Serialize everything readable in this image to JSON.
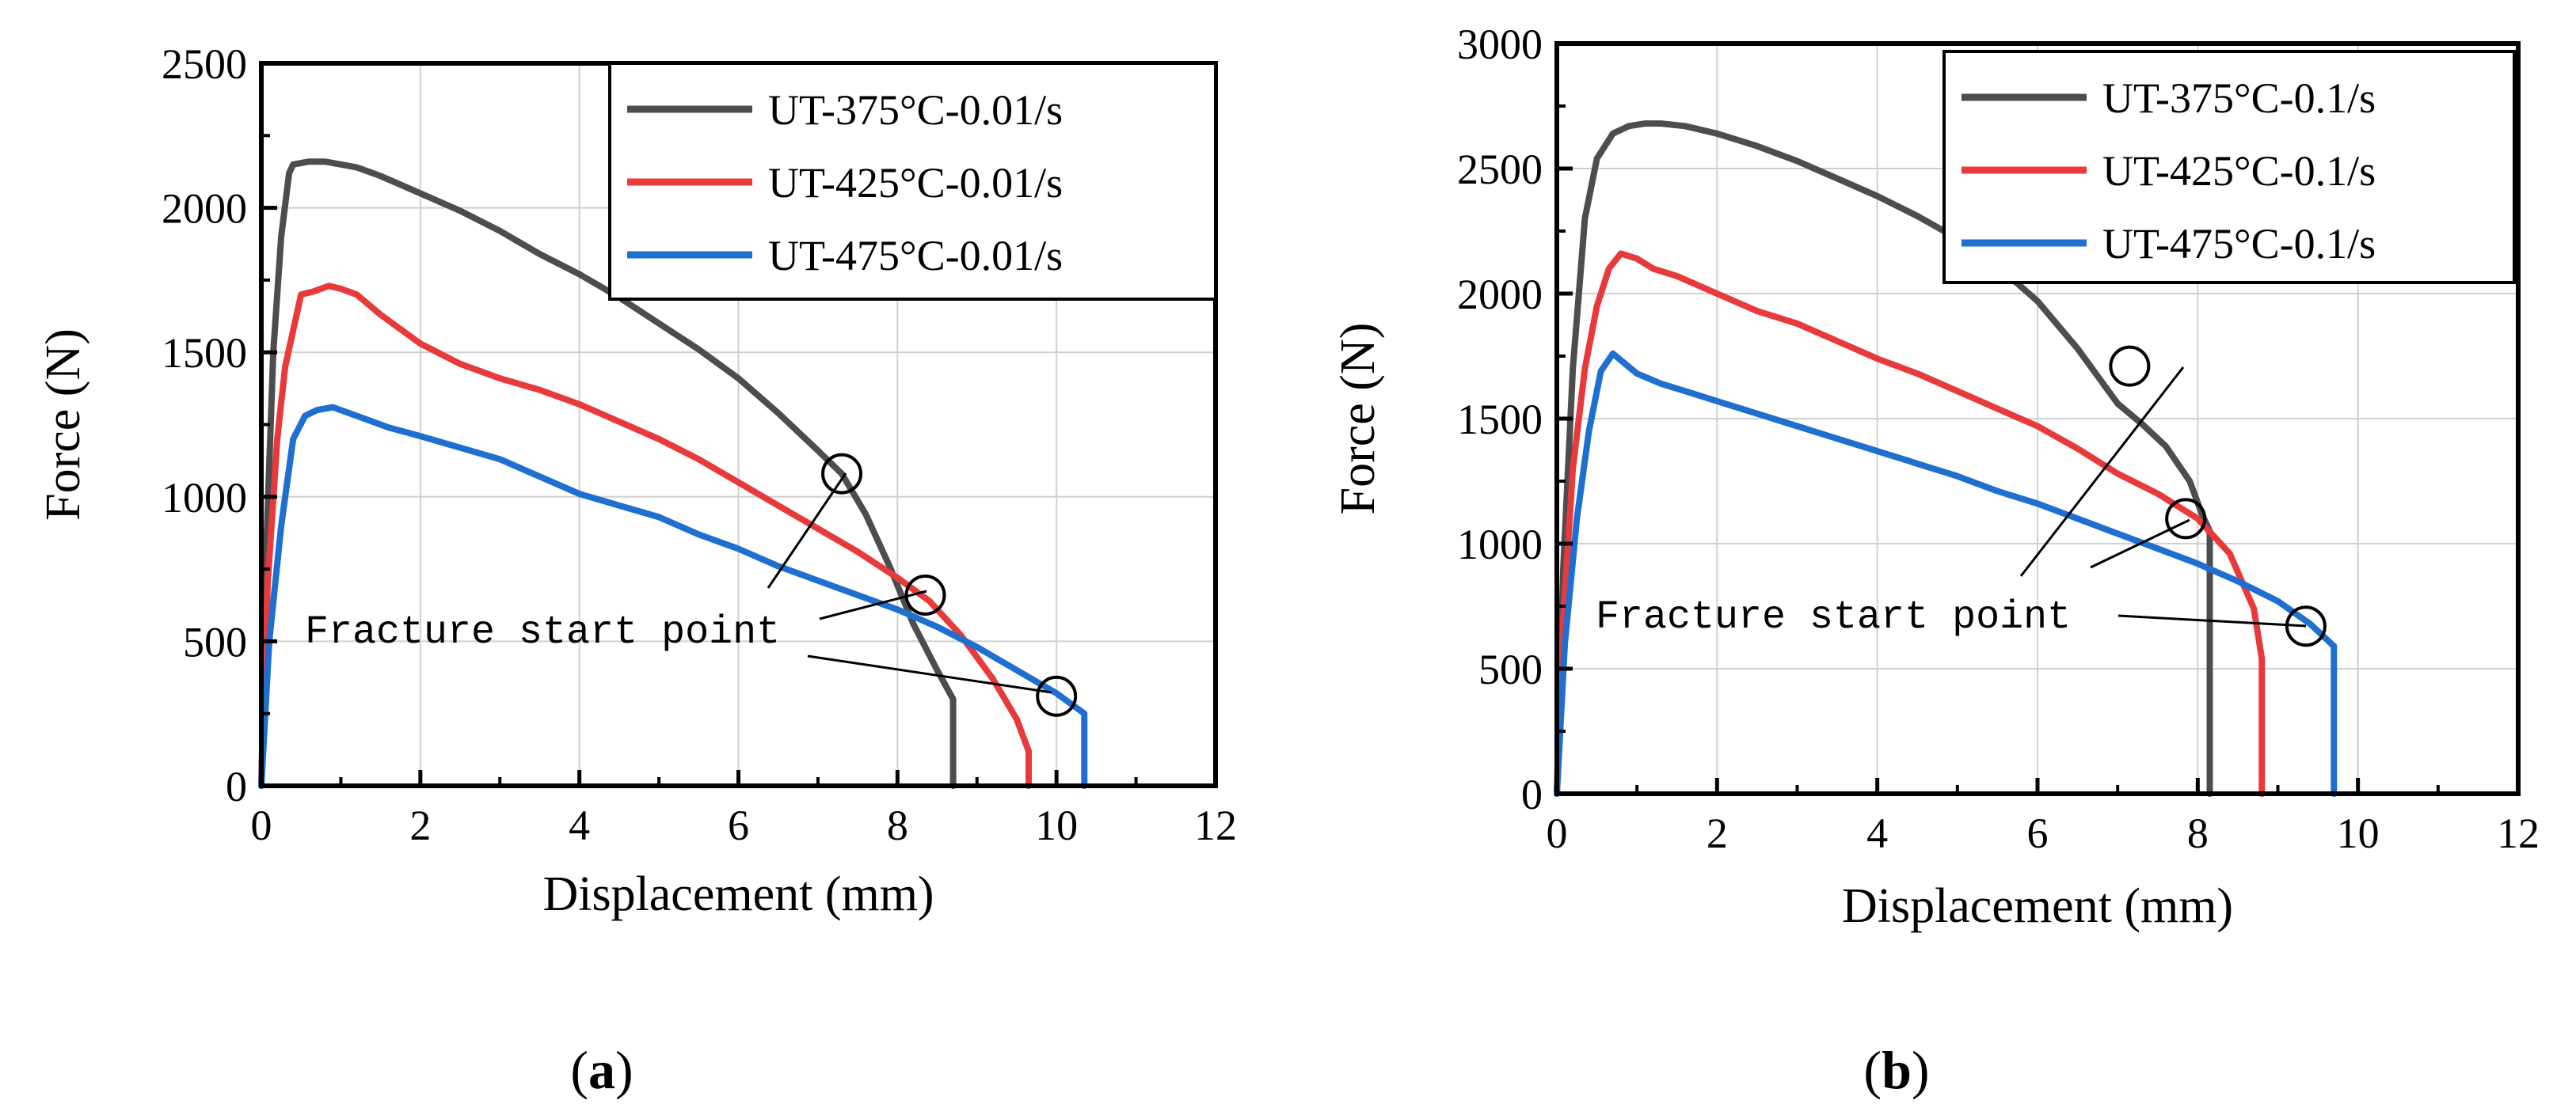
{
  "chart_data": [
    {
      "type": "line",
      "panel_label": "a",
      "xlabel": "Displacement (mm)",
      "ylabel": "Force (N)",
      "xlim": [
        0,
        12
      ],
      "ylim": [
        0,
        2500
      ],
      "xticks": [
        0,
        2,
        4,
        6,
        8,
        10,
        12
      ],
      "yticks": [
        0,
        500,
        1000,
        1500,
        2000,
        2500
      ],
      "grid": true,
      "legend_position": "top-right",
      "annotation": "Fracture start point",
      "series": [
        {
          "name": "UT-375°C-0.01/s",
          "color": "#4d4d4d",
          "x": [
            0,
            0.06,
            0.15,
            0.25,
            0.35,
            0.4,
            0.6,
            0.8,
            1.0,
            1.2,
            1.5,
            2.0,
            2.5,
            3.0,
            3.5,
            4.0,
            4.5,
            5.0,
            5.5,
            6.0,
            6.5,
            7.0,
            7.3,
            7.6,
            7.9,
            8.2,
            8.5,
            8.7,
            8.7
          ],
          "y": [
            0,
            800,
            1500,
            1900,
            2120,
            2150,
            2160,
            2160,
            2150,
            2140,
            2110,
            2050,
            1990,
            1920,
            1840,
            1770,
            1690,
            1600,
            1510,
            1410,
            1290,
            1160,
            1080,
            940,
            760,
            560,
            400,
            300,
            0
          ],
          "fracture_start": [
            7.3,
            1080
          ]
        },
        {
          "name": "UT-425°C-0.01/s",
          "color": "#e8393b",
          "x": [
            0,
            0.08,
            0.2,
            0.3,
            0.5,
            0.65,
            0.85,
            1.0,
            1.2,
            1.5,
            2.0,
            2.5,
            3.0,
            3.5,
            4.0,
            4.5,
            5.0,
            5.5,
            6.0,
            6.5,
            7.0,
            7.5,
            8.0,
            8.4,
            8.8,
            9.2,
            9.5,
            9.65,
            9.65
          ],
          "y": [
            0,
            700,
            1200,
            1450,
            1700,
            1710,
            1730,
            1720,
            1700,
            1630,
            1530,
            1460,
            1410,
            1370,
            1320,
            1260,
            1200,
            1130,
            1050,
            970,
            890,
            810,
            720,
            640,
            520,
            370,
            230,
            120,
            0
          ],
          "fracture_start": [
            8.35,
            660
          ]
        },
        {
          "name": "UT-475°C-0.01/s",
          "color": "#1f6fd1",
          "x": [
            0,
            0.1,
            0.25,
            0.4,
            0.55,
            0.7,
            0.9,
            1.2,
            1.6,
            2.0,
            2.5,
            3.0,
            3.5,
            4.0,
            4.5,
            5.0,
            5.5,
            6.0,
            6.5,
            7.0,
            7.5,
            8.0,
            8.5,
            9.0,
            9.5,
            10.0,
            10.2,
            10.35,
            10.35
          ],
          "y": [
            0,
            500,
            900,
            1200,
            1280,
            1300,
            1310,
            1280,
            1240,
            1210,
            1170,
            1130,
            1070,
            1010,
            970,
            930,
            870,
            820,
            760,
            710,
            660,
            610,
            550,
            480,
            400,
            320,
            280,
            250,
            0
          ],
          "fracture_start": [
            10.0,
            310
          ]
        }
      ]
    },
    {
      "type": "line",
      "panel_label": "b",
      "xlabel": "Displacement  (mm)",
      "ylabel": "Force (N)",
      "xlim": [
        0,
        12
      ],
      "ylim": [
        0,
        3000
      ],
      "xticks": [
        0,
        2,
        4,
        6,
        8,
        10,
        12
      ],
      "yticks": [
        0,
        500,
        1000,
        1500,
        2000,
        2500,
        3000
      ],
      "grid": true,
      "legend_position": "top-right",
      "annotation": "Fracture start point",
      "series": [
        {
          "name": "UT-375°C-0.1/s",
          "color": "#4d4d4d",
          "x": [
            0,
            0.08,
            0.2,
            0.35,
            0.5,
            0.7,
            0.9,
            1.1,
            1.3,
            1.6,
            2.0,
            2.5,
            3.0,
            3.5,
            4.0,
            4.5,
            5.0,
            5.5,
            6.0,
            6.5,
            7.0,
            7.3,
            7.6,
            7.9,
            8.05,
            8.15,
            8.15
          ],
          "y": [
            0,
            900,
            1700,
            2300,
            2540,
            2640,
            2670,
            2680,
            2680,
            2670,
            2640,
            2590,
            2530,
            2460,
            2390,
            2310,
            2220,
            2110,
            1970,
            1780,
            1560,
            1480,
            1390,
            1250,
            1120,
            1050,
            0
          ],
          "fracture_start": [
            7.15,
            1710
          ]
        },
        {
          "name": "UT-425°C-0.1/s",
          "color": "#e8393b",
          "x": [
            0,
            0.08,
            0.2,
            0.35,
            0.5,
            0.65,
            0.8,
            1.0,
            1.2,
            1.5,
            2.0,
            2.5,
            3.0,
            3.5,
            4.0,
            4.5,
            5.0,
            5.5,
            6.0,
            6.5,
            7.0,
            7.5,
            8.0,
            8.4,
            8.7,
            8.8,
            8.8
          ],
          "y": [
            0,
            700,
            1300,
            1700,
            1950,
            2100,
            2160,
            2140,
            2100,
            2070,
            2000,
            1930,
            1880,
            1810,
            1740,
            1680,
            1610,
            1540,
            1470,
            1380,
            1280,
            1200,
            1100,
            960,
            740,
            540,
            0
          ],
          "fracture_start": [
            7.85,
            1100
          ]
        },
        {
          "name": "UT-475°C-0.1/s",
          "color": "#1f6fd1",
          "x": [
            0,
            0.1,
            0.25,
            0.4,
            0.55,
            0.7,
            0.85,
            1.0,
            1.3,
            1.6,
            2.0,
            2.5,
            3.0,
            3.5,
            4.0,
            4.5,
            5.0,
            5.5,
            6.0,
            6.5,
            7.0,
            7.5,
            8.0,
            8.5,
            9.0,
            9.4,
            9.7,
            9.7
          ],
          "y": [
            0,
            600,
            1100,
            1450,
            1690,
            1760,
            1720,
            1680,
            1640,
            1610,
            1570,
            1520,
            1470,
            1420,
            1370,
            1320,
            1270,
            1210,
            1160,
            1100,
            1040,
            980,
            920,
            850,
            770,
            680,
            590,
            0
          ],
          "fracture_start": [
            9.35,
            670
          ]
        }
      ]
    }
  ]
}
